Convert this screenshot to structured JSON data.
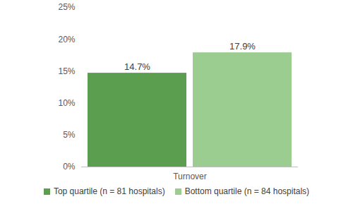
{
  "chart_data": {
    "type": "bar",
    "categories": [
      "Turnover"
    ],
    "series": [
      {
        "name": "Top quartile (n = 81 hospitals)",
        "color": "#5c9e50",
        "values": [
          14.7
        ],
        "value_labels": [
          "14.7%"
        ]
      },
      {
        "name": "Bottom quartile (n = 84 hospitals)",
        "color": "#9acd8f",
        "values": [
          17.9
        ],
        "value_labels": [
          "17.9%"
        ]
      }
    ],
    "ylim": [
      0,
      25
    ],
    "yticks": [
      {
        "value": 0,
        "label": "0%"
      },
      {
        "value": 5,
        "label": "5%"
      },
      {
        "value": 10,
        "label": "10%"
      },
      {
        "value": 15,
        "label": "15%"
      },
      {
        "value": 20,
        "label": "20%"
      },
      {
        "value": 25,
        "label": "25%"
      }
    ],
    "grid": false,
    "data_labels": true,
    "legend": "bottom"
  }
}
